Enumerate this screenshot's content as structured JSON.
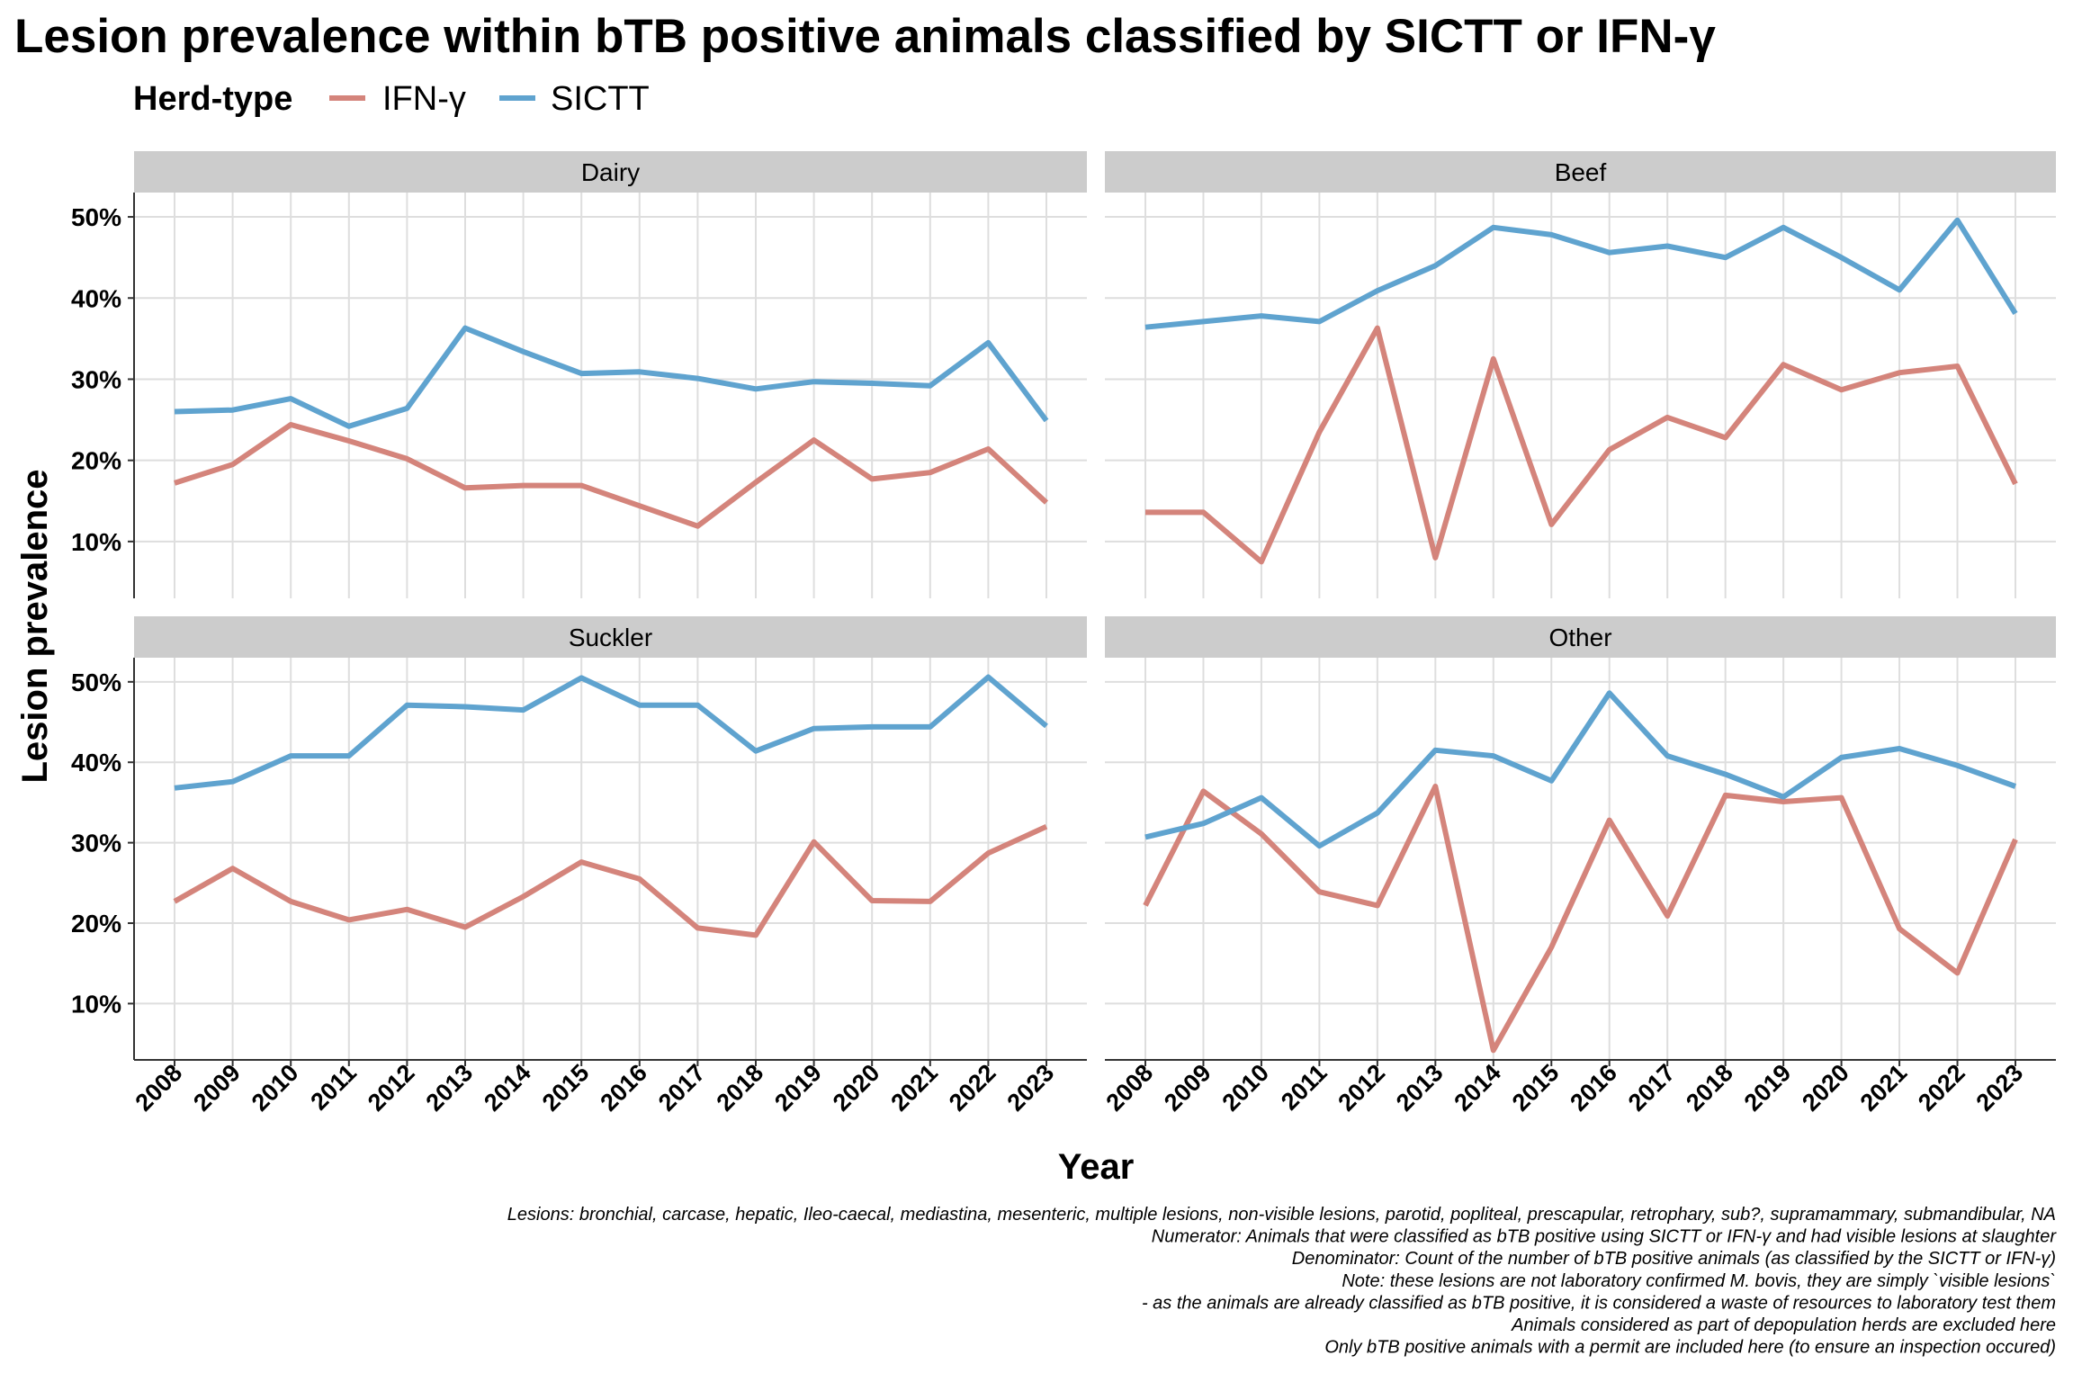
{
  "chart_data": {
    "type": "line",
    "title": "Lesion prevalence within bTB positive animals classified by SICTT or IFN-γ",
    "legend": {
      "title": "Herd-type",
      "position": "top-left",
      "entries": [
        {
          "label": "IFN-γ",
          "color": "#D4847B"
        },
        {
          "label": "SICTT",
          "color": "#5FA3CF"
        }
      ]
    },
    "xlabel": "Year",
    "ylabel": "Lesion prevalence",
    "x": [
      "2008",
      "2009",
      "2010",
      "2011",
      "2012",
      "2013",
      "2014",
      "2015",
      "2016",
      "2017",
      "2018",
      "2019",
      "2020",
      "2021",
      "2022",
      "2023"
    ],
    "ylim": [
      3,
      53
    ],
    "yticks": [
      10,
      20,
      30,
      40,
      50
    ],
    "ytick_labels": [
      "10%",
      "20%",
      "30%",
      "40%",
      "50%"
    ],
    "grid": true,
    "panels": [
      {
        "label": "Dairy",
        "series": [
          {
            "name": "IFN-γ",
            "values": [
              17.2,
              19.5,
              24.4,
              22.4,
              20.2,
              16.6,
              16.9,
              16.9,
              14.4,
              11.9,
              17.3,
              22.5,
              17.7,
              18.5,
              21.4,
              14.8
            ]
          },
          {
            "name": "SICTT",
            "values": [
              26.0,
              26.2,
              27.6,
              24.2,
              26.4,
              36.3,
              33.4,
              30.7,
              30.9,
              30.1,
              28.8,
              29.7,
              29.5,
              29.2,
              34.5,
              24.9
            ]
          }
        ]
      },
      {
        "label": "Beef",
        "series": [
          {
            "name": "IFN-γ",
            "values": [
              13.6,
              13.6,
              7.5,
              23.5,
              36.3,
              8.0,
              32.5,
              12.1,
              21.3,
              25.3,
              22.8,
              31.8,
              28.7,
              30.8,
              31.6,
              17.1
            ]
          },
          {
            "name": "SICTT",
            "values": [
              36.4,
              37.1,
              37.8,
              37.1,
              40.9,
              44.0,
              48.7,
              47.8,
              45.6,
              46.4,
              45.0,
              48.7,
              45.0,
              41.0,
              49.6,
              38.1
            ]
          }
        ]
      },
      {
        "label": "Suckler",
        "series": [
          {
            "name": "IFN-γ",
            "values": [
              22.7,
              26.8,
              22.7,
              20.4,
              21.7,
              19.5,
              23.3,
              27.6,
              25.5,
              19.4,
              18.5,
              30.1,
              22.8,
              22.7,
              28.7,
              32.0
            ]
          },
          {
            "name": "SICTT",
            "values": [
              36.8,
              37.6,
              40.8,
              40.8,
              47.1,
              46.9,
              46.5,
              50.5,
              47.1,
              47.1,
              41.4,
              44.2,
              44.4,
              44.4,
              50.6,
              44.5
            ]
          }
        ]
      },
      {
        "label": "Other",
        "series": [
          {
            "name": "IFN-γ",
            "values": [
              22.2,
              36.4,
              31.1,
              23.9,
              22.2,
              37.0,
              4.2,
              17.0,
              32.8,
              20.9,
              35.9,
              35.1,
              35.6,
              19.3,
              13.8,
              30.4
            ]
          },
          {
            "name": "SICTT",
            "values": [
              30.7,
              32.4,
              35.6,
              29.6,
              33.7,
              41.5,
              40.8,
              37.7,
              48.6,
              40.8,
              38.5,
              35.7,
              40.6,
              41.7,
              39.6,
              37.0
            ]
          }
        ]
      }
    ],
    "caption": [
      "Lesions: bronchial, carcase, hepatic, Ileo-caecal, mediastina, mesenteric, multiple lesions, non-visible lesions, parotid, popliteal, prescapular, retrophary, sub?, supramammary, submandibular, NA",
      "Numerator: Animals that were classified as bTB positive using SICTT or IFN-γ and had visible lesions at slaughter",
      "Denominator: Count of the number of bTB positive animals (as classified by the SICTT or IFN-γ)",
      "Note: these lesions are not laboratory confirmed M. bovis, they are simply `visible lesions`",
      "- as the animals are already classified as bTB positive, it is considered a waste of resources to laboratory test them",
      "Animals considered as part of depopulation herds are excluded here",
      "Only bTB positive animals with a permit are included here (to ensure an inspection occured)"
    ]
  }
}
